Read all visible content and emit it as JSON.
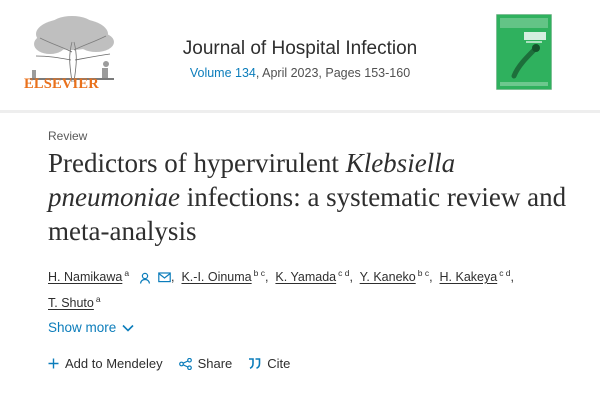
{
  "header": {
    "publisher": "ELSEVIER",
    "journal_title": "Journal of Hospital Infection",
    "volume_link": "Volume 134",
    "issue_rest": ", April 2023, Pages 153-160"
  },
  "article": {
    "type": "Review",
    "title_part1": "Predictors of hypervirulent ",
    "title_italic": "Klebsiella pneumoniae",
    "title_part2": " infections: a systematic review and meta-analysis"
  },
  "authors": [
    {
      "name": "H. Namikawa",
      "aff": "a"
    },
    {
      "name": "K.-I. Oinuma",
      "aff": "b c"
    },
    {
      "name": "K. Yamada",
      "aff": "c d"
    },
    {
      "name": "Y. Kaneko",
      "aff": "b c"
    },
    {
      "name": "H. Kakeya",
      "aff": "c d"
    },
    {
      "name": "T. Shuto",
      "aff": "a"
    }
  ],
  "show_more": "Show more",
  "actions": {
    "mendeley": "Add to Mendeley",
    "share": "Share",
    "cite": "Cite"
  },
  "colors": {
    "link": "#0c7dbb",
    "publisher": "#e9711c",
    "cover": "#2fb15e"
  },
  "icons": [
    "elsevier-tree-logo",
    "person-icon",
    "envelope-icon",
    "chevron-down-icon",
    "plus-icon",
    "share-icon",
    "quote-icon"
  ]
}
